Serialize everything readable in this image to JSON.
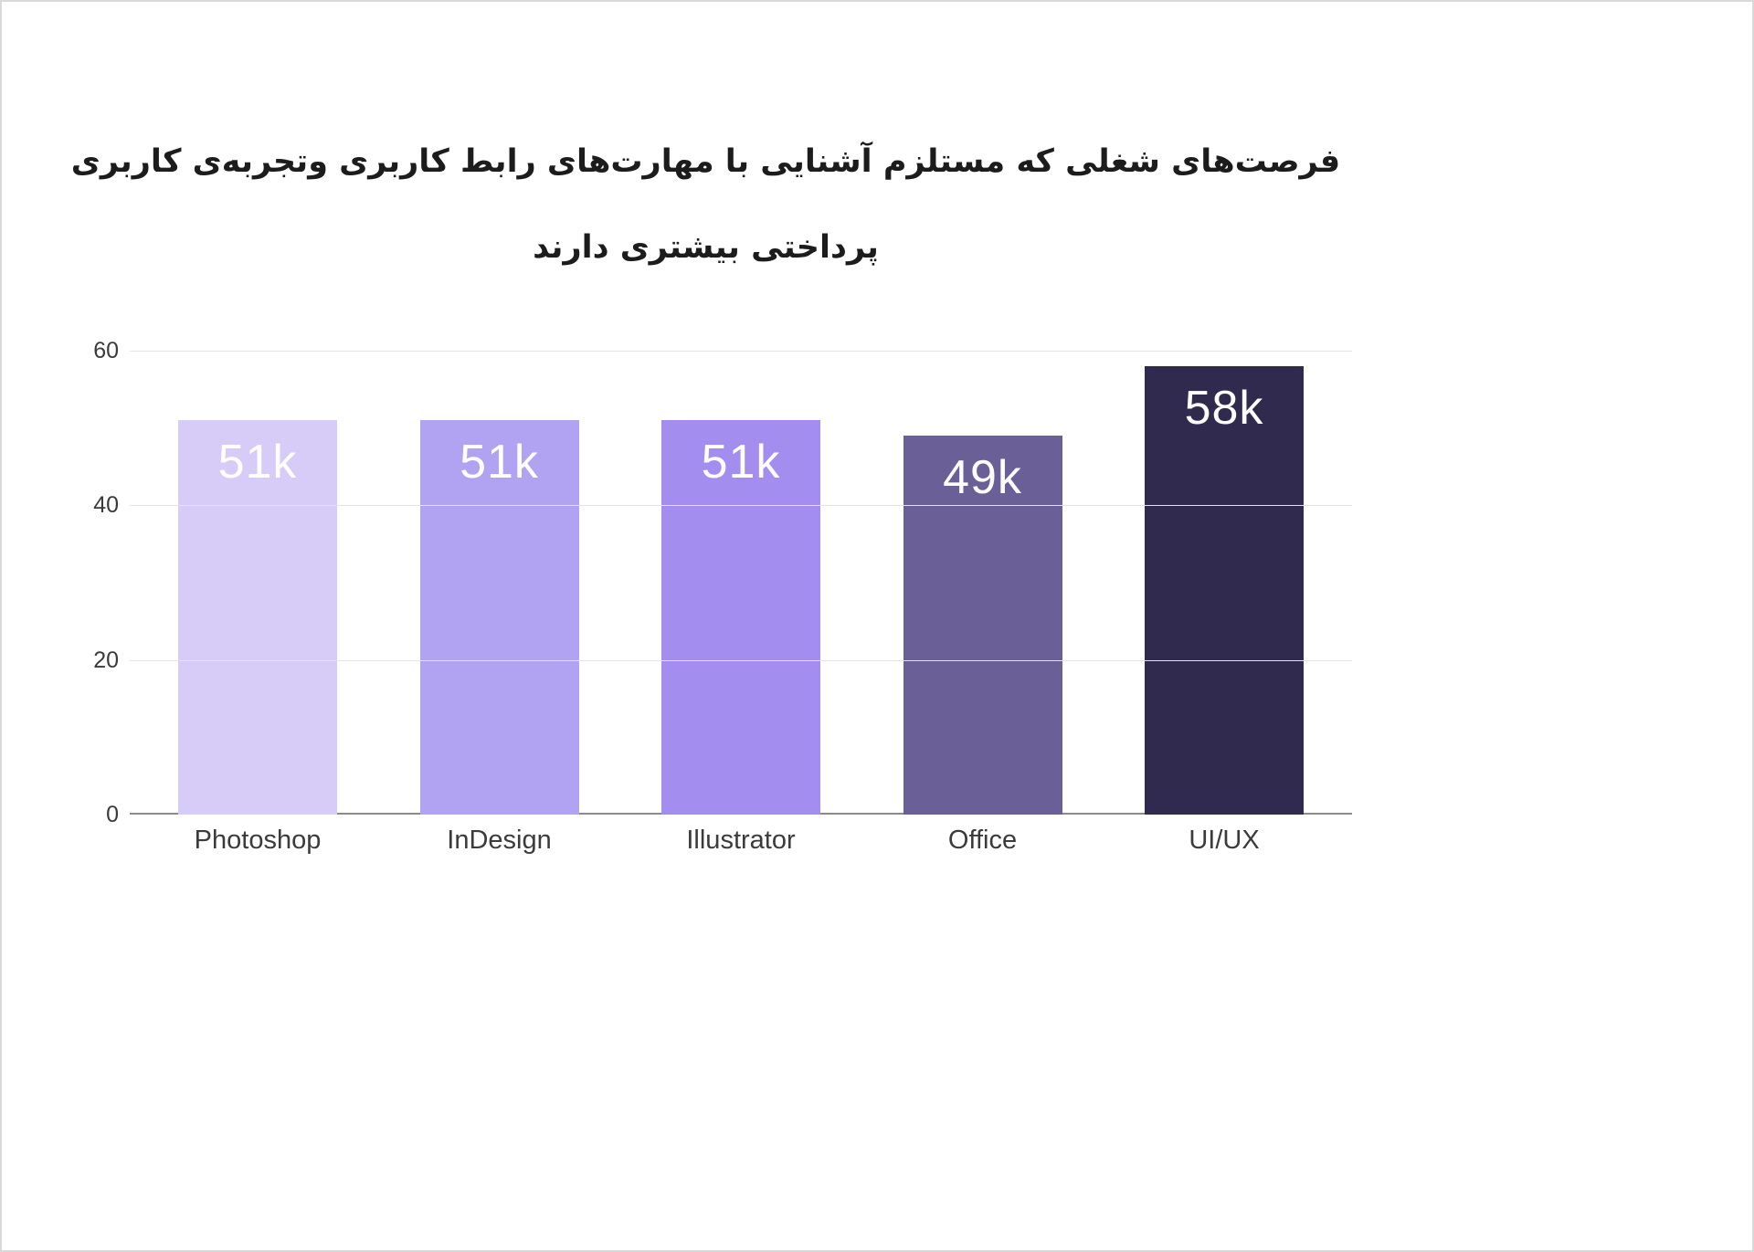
{
  "page": {
    "background": "#ffffff",
    "border_color": "#d9d9d9"
  },
  "chart_data": {
    "type": "bar",
    "title": "فرصت‌های شغلی که مستلزم آشنایی با مهارت‌های رابط کاربری وتجربه‌ی کاربری پرداختی بیشتری دارند",
    "title_lines": [
      "فرصت‌های شغلی که مستلزم آشنایی با مهارت‌های رابط کاربری وتجربه‌ی کاربری",
      "پرداختی بیشتری دارند"
    ],
    "categories": [
      "Photoshop",
      "InDesign",
      "Illustrator",
      "Office",
      "UI/UX"
    ],
    "values": [
      51,
      51,
      51,
      49,
      58
    ],
    "bar_labels": [
      "51k",
      "51k",
      "51k",
      "49k",
      "58k"
    ],
    "bar_colors": [
      "#d7cbf8",
      "#b2a3f2",
      "#a38ef0",
      "#6a5f97",
      "#302b4e"
    ],
    "value_label_color": "#ffffff",
    "xlabel": "",
    "ylabel": "",
    "y_ticks": [
      0,
      20,
      40,
      60
    ],
    "ylim": [
      0,
      60
    ],
    "grid": true,
    "legend": false,
    "axis_color": "#8b8b8b",
    "gridline_color": "#e4e4e4",
    "tick_label_color": "#3b3b3b"
  }
}
